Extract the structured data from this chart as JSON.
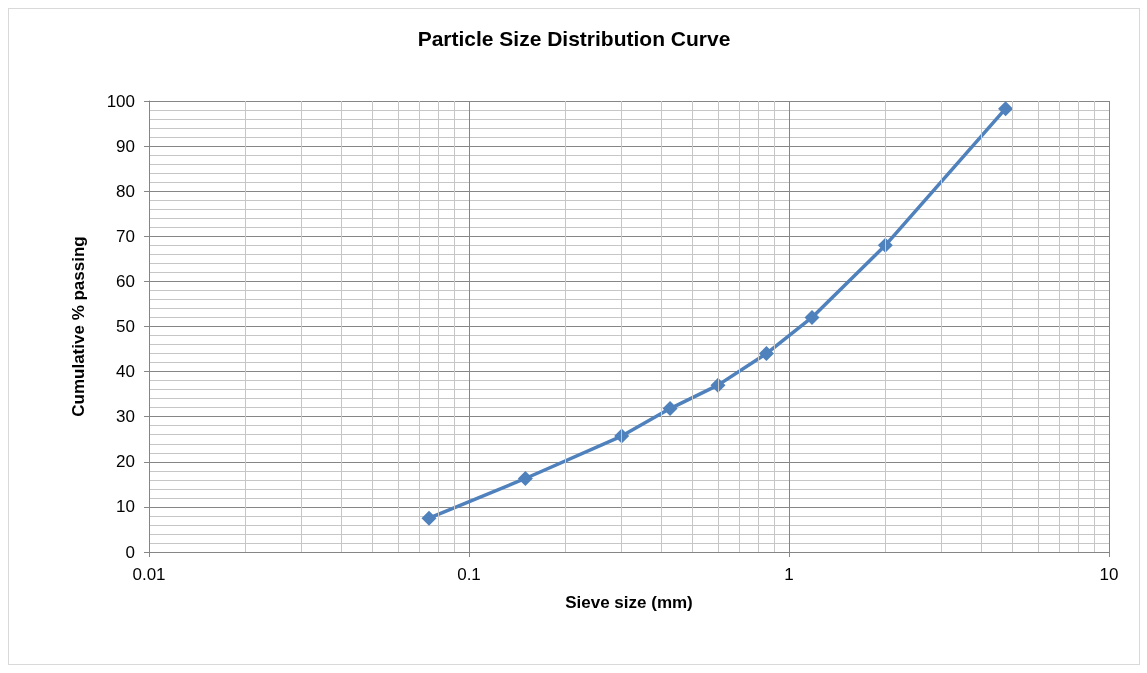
{
  "chart_data": {
    "type": "line",
    "title": "Particle Size Distribution Curve",
    "xlabel": "Sieve size (mm)",
    "ylabel": "Cumulative % passing",
    "x": [
      0.075,
      0.15,
      0.3,
      0.425,
      0.6,
      0.85,
      1.18,
      2,
      4.75
    ],
    "series": [
      {
        "color": "#4f81bd",
        "values": [
          7.5,
          16.3,
          25.7,
          31.8,
          37,
          44,
          52,
          68,
          98.3
        ]
      }
    ],
    "xlim": [
      0.01,
      10
    ],
    "xticks": [
      0.01,
      0.1,
      1,
      10
    ],
    "ylim": [
      0,
      100
    ],
    "yticks": [
      0,
      10,
      20,
      30,
      40,
      50,
      60,
      70,
      80,
      90,
      100
    ],
    "log": "x",
    "grid": true,
    "marker": "diamond",
    "line_style": "solid"
  }
}
